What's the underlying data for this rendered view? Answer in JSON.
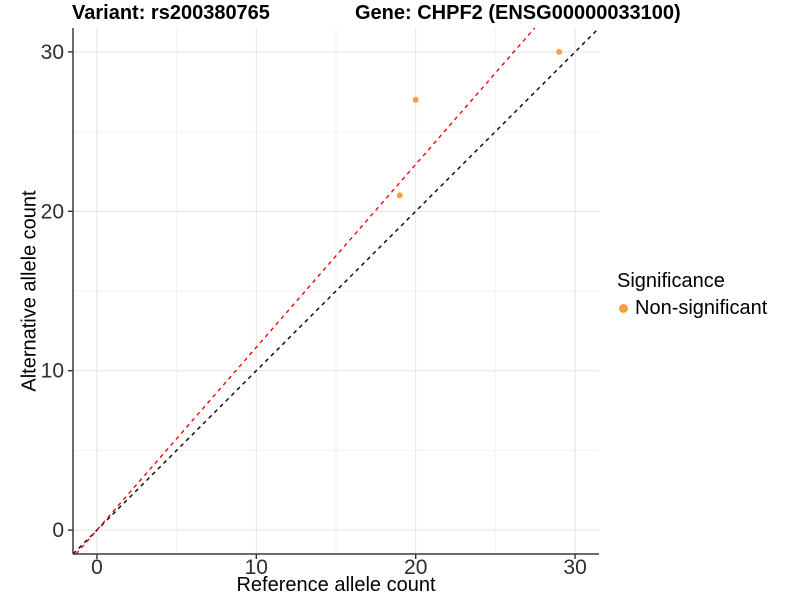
{
  "page": {
    "background": "#FFFFFF"
  },
  "chart_data": {
    "type": "scatter",
    "titles": {
      "variant": "Variant: rs200380765",
      "gene": "Gene: CHPF2 (ENSG00000033100)"
    },
    "xlabel": "Reference allele count",
    "ylabel": "Alternative allele count",
    "xlim": [
      -1.5,
      31.5
    ],
    "ylim": [
      -1.5,
      31.5
    ],
    "x_ticks": [
      {
        "value": 0,
        "label": "0"
      },
      {
        "value": 10,
        "label": "10"
      },
      {
        "value": 20,
        "label": "20"
      },
      {
        "value": 30,
        "label": "30"
      }
    ],
    "y_ticks": [
      {
        "value": 0,
        "label": "0"
      },
      {
        "value": 10,
        "label": "10"
      },
      {
        "value": 20,
        "label": "20"
      },
      {
        "value": 30,
        "label": "30"
      }
    ],
    "grid": {
      "show": true,
      "minor_positions": [
        5,
        15,
        25
      ],
      "major_color": "#E4E4E4",
      "minor_color": "#F2F2F2"
    },
    "points": [
      {
        "x": 19,
        "y": 21,
        "significance": "Non-significant"
      },
      {
        "x": 20,
        "y": 27,
        "significance": "Non-significant"
      },
      {
        "x": 29,
        "y": 30,
        "significance": "Non-significant"
      }
    ],
    "point_color": "#F8A13C",
    "lines": [
      {
        "name": "identity-line",
        "slope": 1,
        "intercept": 0,
        "color": "#000000",
        "style": "dashed"
      },
      {
        "name": "allelic-ratio-line",
        "slope": 1.147,
        "intercept": 0,
        "color": "#FF0000",
        "style": "dashed"
      }
    ],
    "legend": {
      "title": "Significance",
      "position": "right",
      "items": [
        {
          "label": "Non-significant",
          "color": "#F8A13C"
        }
      ]
    }
  }
}
